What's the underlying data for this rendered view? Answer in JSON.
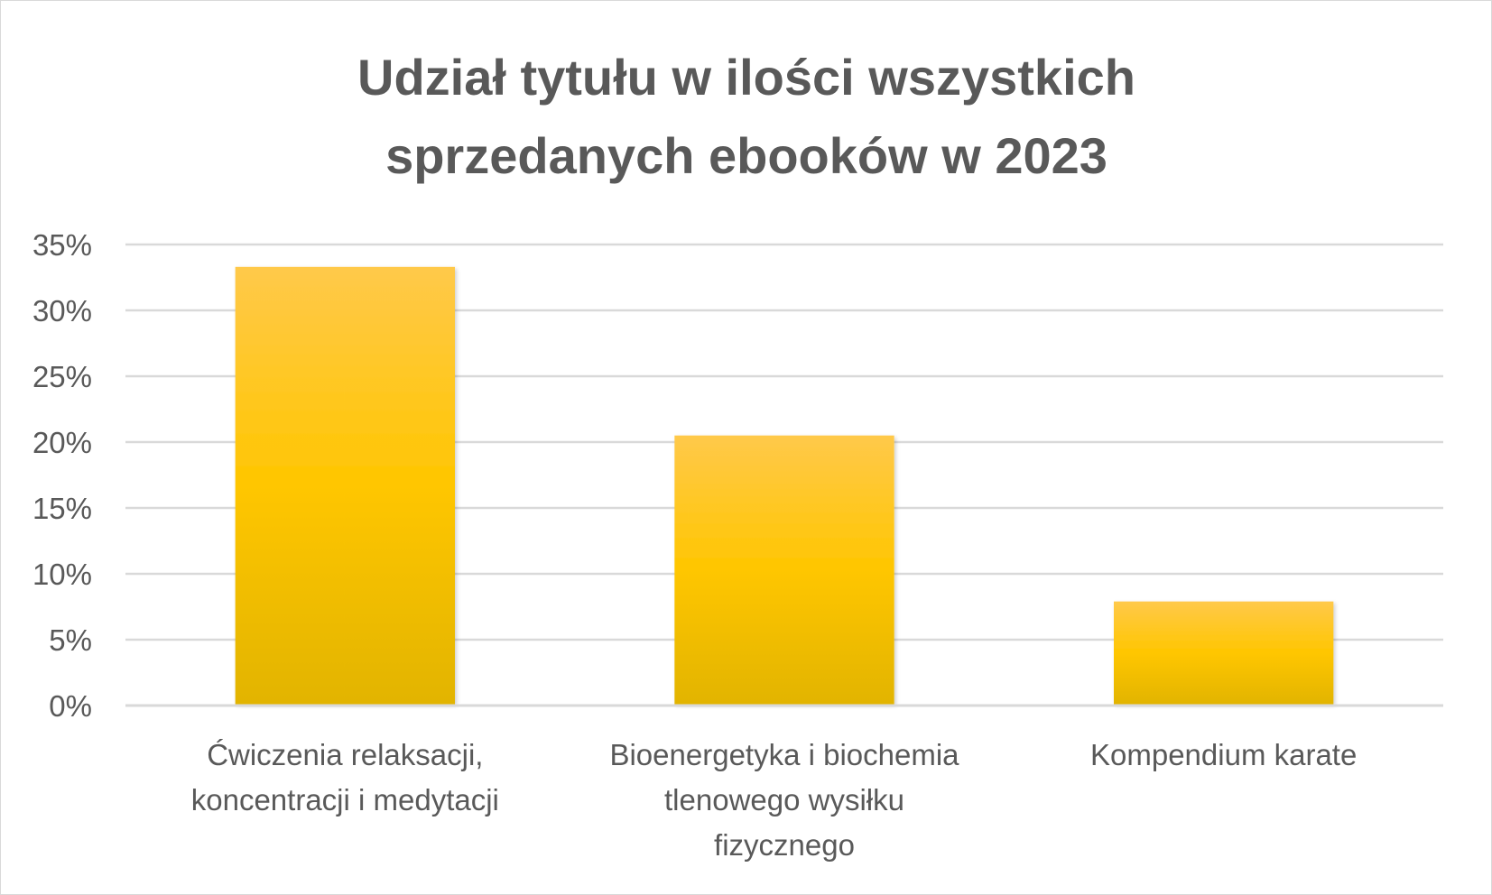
{
  "chart_data": {
    "type": "bar",
    "title_lines": [
      "Udział tytułu w ilości wszystkich",
      "sprzedanych ebooków w 2023"
    ],
    "categories": [
      [
        "Ćwiczenia relaksacji,",
        "koncentracji i medytacji"
      ],
      [
        "Bioenergetyka i biochemia",
        "tlenowego wysiłku",
        "fizycznego"
      ],
      [
        "Kompendium karate"
      ]
    ],
    "values": [
      0.333,
      0.205,
      0.079
    ],
    "ylim": [
      0,
      0.35
    ],
    "yticks": [
      0,
      0.05,
      0.1,
      0.15,
      0.2,
      0.25,
      0.3,
      0.35
    ],
    "ytick_labels": [
      "0%",
      "5%",
      "10%",
      "15%",
      "20%",
      "25%",
      "30%",
      "35%"
    ],
    "xlabel": "",
    "ylabel": "",
    "grid": true,
    "legend": "none",
    "colors": {
      "bar_top": "#ffc94a",
      "bar_mid": "#ffc600",
      "bar_bottom": "#e2b400",
      "grid": "#d9d9d9",
      "text": "#595959"
    }
  }
}
